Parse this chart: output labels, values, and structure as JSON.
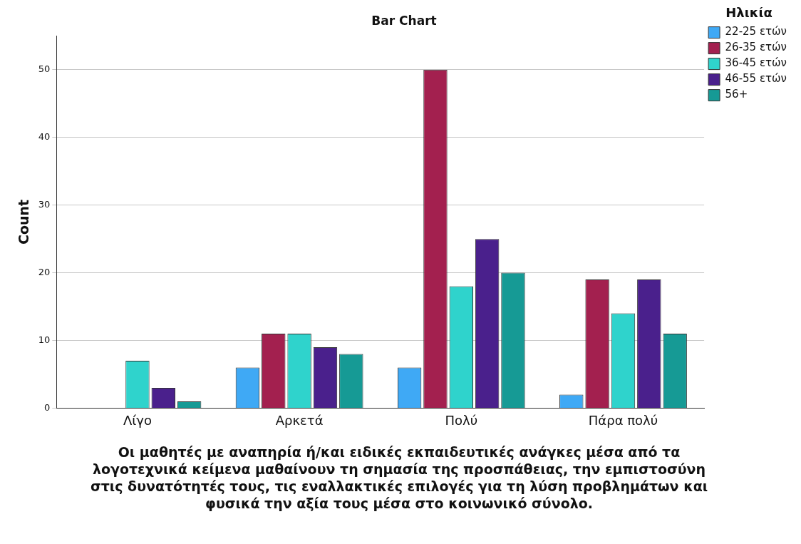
{
  "chart_data": {
    "type": "bar",
    "title": "Bar Chart",
    "ylabel": "Count",
    "xlabel": "Οι μαθητές με αναπηρία ή/και ειδικές εκπαιδευτικές ανάγκες μέσα από τα λογοτεχνικά κείμενα  μαθαίνουν τη σημασία της προσπάθειας, την εμπιστοσύνη στις δυνατότητές τους, τις εναλλακτικές επιλογές για τη λύση προβλημάτων και φυσικά την αξία τους μέσα στο κοινωνικό σύνολο.",
    "legend_title": "Ηλικία",
    "categories": [
      "Λίγο",
      "Αρκετά",
      "Πολύ",
      "Πάρα πολύ"
    ],
    "series": [
      {
        "name": "22-25 ετών",
        "color": "#3fa9f5",
        "values": [
          null,
          6,
          6,
          2
        ]
      },
      {
        "name": "26-35 ετών",
        "color": "#a3204f",
        "values": [
          null,
          11,
          50,
          19
        ]
      },
      {
        "name": "36-45 ετών",
        "color": "#2fd3cc",
        "values": [
          7,
          11,
          18,
          14
        ]
      },
      {
        "name": "46-55 ετών",
        "color": "#4a208c",
        "values": [
          3,
          9,
          25,
          19
        ]
      },
      {
        "name": "56+",
        "color": "#169a95",
        "values": [
          1,
          8,
          20,
          11
        ]
      }
    ],
    "ylim": [
      0,
      55
    ],
    "yticks": [
      0,
      10,
      20,
      30,
      40,
      50
    ],
    "grid": "y",
    "legend": "top right"
  }
}
